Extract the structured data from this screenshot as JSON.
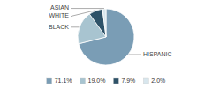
{
  "chart_data": {
    "type": "pie",
    "categories": [
      "HISPANIC",
      "BLACK",
      "WHITE",
      "ASIAN"
    ],
    "values": [
      71.1,
      19.0,
      7.9,
      2.0
    ],
    "value_labels": [
      "71.1%",
      "19.0%",
      "7.9%",
      "2.0%"
    ],
    "colors": [
      "#7a9db5",
      "#a8c4d0",
      "#2e5268",
      "#d8e6ed"
    ],
    "legend": "bottom"
  }
}
